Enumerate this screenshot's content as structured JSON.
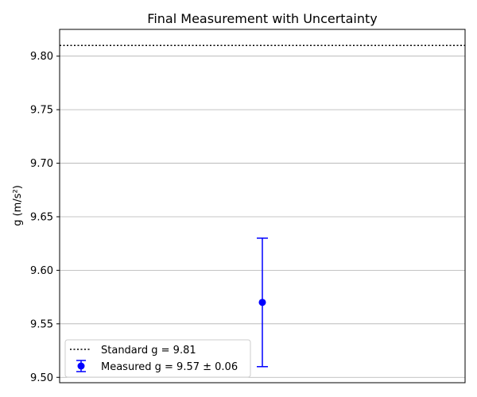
{
  "chart_data": {
    "type": "scatter",
    "title": "Final Measurement with Uncertainty",
    "xlabel": "",
    "ylabel": "g (m/s²)",
    "ylim": [
      9.495,
      9.825
    ],
    "xlim": [
      -1,
      1
    ],
    "yticks": [
      9.5,
      9.55,
      9.6,
      9.65,
      9.7,
      9.75,
      9.8
    ],
    "ytick_labels": [
      "9.50",
      "9.55",
      "9.60",
      "9.65",
      "9.70",
      "9.75",
      "9.80"
    ],
    "grid": "y",
    "legend_position": "lower-left",
    "reference_line": {
      "name": "Standard g = 9.81",
      "y": 9.81,
      "style": "dotted",
      "color": "#000000"
    },
    "series": [
      {
        "name": "Measured g = 9.57 ± 0.06",
        "x": [
          0
        ],
        "y": [
          9.57
        ],
        "yerr": [
          0.06
        ],
        "color": "#0000ff"
      }
    ]
  }
}
